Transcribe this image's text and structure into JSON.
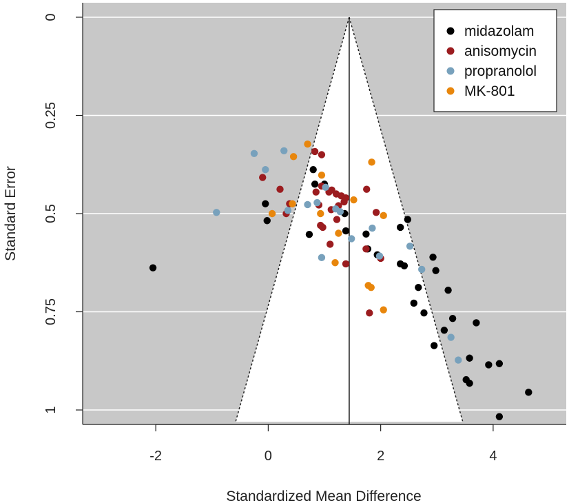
{
  "chart_data": {
    "type": "scatter",
    "subtype": "funnel-plot",
    "xlabel": "Standardized Mean Difference",
    "ylabel": "Standard Error",
    "xlim": [
      -3.3,
      5.3
    ],
    "ylim": [
      0,
      1.03
    ],
    "y_reversed": true,
    "x_ticks": [
      -2,
      0,
      2,
      4
    ],
    "x_tick_labels": [
      "-2",
      "0",
      "2",
      "4"
    ],
    "y_ticks": [
      0,
      0.25,
      0.5,
      0.75,
      1
    ],
    "y_tick_labels": [
      "0",
      "0.25",
      "0.5",
      "0.75",
      "1"
    ],
    "grid": "horizontal",
    "background": "#c8c8c8",
    "funnel": {
      "center": 1.44,
      "apex_se": 0,
      "bottom_se": 1.03,
      "left_at_bottom": -0.58,
      "right_at_bottom": 3.46
    },
    "legend": {
      "position": "top-right"
    },
    "series": [
      {
        "name": "midazolam",
        "color": "#000000",
        "points": [
          [
            -2.05,
            0.638
          ],
          [
            -0.05,
            0.475
          ],
          [
            -0.02,
            0.518
          ],
          [
            0.8,
            0.388
          ],
          [
            0.83,
            0.425
          ],
          [
            0.73,
            0.553
          ],
          [
            1.0,
            0.425
          ],
          [
            1.36,
            0.5
          ],
          [
            1.38,
            0.544
          ],
          [
            1.74,
            0.552
          ],
          [
            1.77,
            0.59
          ],
          [
            1.94,
            0.605
          ],
          [
            2.35,
            0.535
          ],
          [
            2.35,
            0.628
          ],
          [
            2.42,
            0.633
          ],
          [
            2.48,
            0.515
          ],
          [
            2.93,
            0.611
          ],
          [
            2.98,
            0.645
          ],
          [
            2.67,
            0.688
          ],
          [
            2.59,
            0.728
          ],
          [
            2.77,
            0.753
          ],
          [
            3.2,
            0.695
          ],
          [
            3.28,
            0.767
          ],
          [
            3.7,
            0.778
          ],
          [
            3.13,
            0.797
          ],
          [
            2.95,
            0.836
          ],
          [
            3.58,
            0.868
          ],
          [
            3.52,
            0.923
          ],
          [
            3.58,
            0.932
          ],
          [
            3.92,
            0.885
          ],
          [
            4.11,
            0.882
          ],
          [
            4.63,
            0.955
          ],
          [
            4.11,
            1.017
          ]
        ]
      },
      {
        "name": "anisomycin",
        "color": "#9b1c1f",
        "points": [
          [
            0.83,
            0.342
          ],
          [
            0.95,
            0.35
          ],
          [
            -0.1,
            0.408
          ],
          [
            0.21,
            0.438
          ],
          [
            0.38,
            0.475
          ],
          [
            0.32,
            0.5
          ],
          [
            0.85,
            0.445
          ],
          [
            0.95,
            0.43
          ],
          [
            1.08,
            0.445
          ],
          [
            1.13,
            0.44
          ],
          [
            1.21,
            0.45
          ],
          [
            1.3,
            0.455
          ],
          [
            1.38,
            0.46
          ],
          [
            0.9,
            0.478
          ],
          [
            1.12,
            0.49
          ],
          [
            1.25,
            0.48
          ],
          [
            1.35,
            0.47
          ],
          [
            1.22,
            0.515
          ],
          [
            0.93,
            0.53
          ],
          [
            0.97,
            0.535
          ],
          [
            1.1,
            0.578
          ],
          [
            1.38,
            0.628
          ],
          [
            1.75,
            0.438
          ],
          [
            1.92,
            0.497
          ],
          [
            1.74,
            0.59
          ],
          [
            2.0,
            0.614
          ],
          [
            1.8,
            0.753
          ]
        ]
      },
      {
        "name": "propranolol",
        "color": "#78a1bc",
        "points": [
          [
            -0.25,
            0.347
          ],
          [
            0.28,
            0.34
          ],
          [
            -0.05,
            0.388
          ],
          [
            -0.92,
            0.497
          ],
          [
            0.35,
            0.492
          ],
          [
            0.7,
            0.477
          ],
          [
            0.87,
            0.472
          ],
          [
            1.02,
            0.433
          ],
          [
            1.2,
            0.488
          ],
          [
            1.28,
            0.495
          ],
          [
            1.48,
            0.564
          ],
          [
            0.95,
            0.612
          ],
          [
            1.85,
            0.537
          ],
          [
            1.98,
            0.608
          ],
          [
            2.52,
            0.583
          ],
          [
            2.73,
            0.642
          ],
          [
            3.25,
            0.815
          ],
          [
            3.38,
            0.873
          ]
        ]
      },
      {
        "name": "MK-801",
        "color": "#e8860c",
        "points": [
          [
            0.7,
            0.323
          ],
          [
            0.45,
            0.355
          ],
          [
            0.95,
            0.402
          ],
          [
            0.07,
            0.5
          ],
          [
            0.43,
            0.475
          ],
          [
            0.93,
            0.5
          ],
          [
            1.52,
            0.465
          ],
          [
            1.19,
            0.625
          ],
          [
            1.25,
            0.55
          ],
          [
            1.84,
            0.369
          ],
          [
            2.05,
            0.505
          ],
          [
            1.78,
            0.683
          ],
          [
            1.83,
            0.688
          ],
          [
            2.05,
            0.745
          ]
        ]
      }
    ]
  }
}
